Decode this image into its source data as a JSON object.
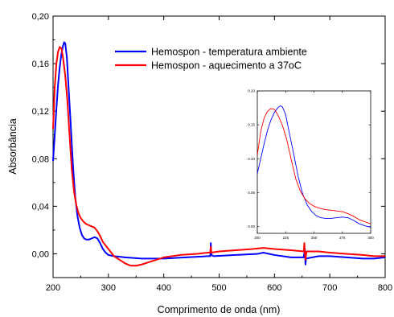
{
  "chart_data": [
    {
      "type": "line",
      "title": "",
      "xlabel": "Comprimento de onda (nm)",
      "ylabel": "Absorbância",
      "xlim": [
        200,
        800
      ],
      "ylim": [
        -0.02,
        0.2
      ],
      "x_ticks": [
        200,
        300,
        400,
        500,
        600,
        700,
        800
      ],
      "x_tick_labels": [
        "200",
        "300",
        "400",
        "500",
        "600",
        "700",
        "800"
      ],
      "y_ticks": [
        0.0,
        0.04,
        0.08,
        0.12,
        0.16,
        0.2
      ],
      "y_tick_labels": [
        "0,00",
        "0,04",
        "0,08",
        "0,12",
        "0,16",
        "0,20"
      ],
      "legend_position": "top-right",
      "series": [
        {
          "name": "Hemospon - temperatura ambiente",
          "color": "#0000ff",
          "points": [
            [
              200,
              0.078
            ],
            [
              203,
              0.1
            ],
            [
              206,
              0.122
            ],
            [
              209,
              0.142
            ],
            [
              212,
              0.157
            ],
            [
              215,
              0.168
            ],
            [
              218,
              0.175
            ],
            [
              220,
              0.178
            ],
            [
              222,
              0.177
            ],
            [
              225,
              0.165
            ],
            [
              228,
              0.14
            ],
            [
              232,
              0.108
            ],
            [
              236,
              0.074
            ],
            [
              240,
              0.048
            ],
            [
              244,
              0.032
            ],
            [
              248,
              0.022
            ],
            [
              252,
              0.016
            ],
            [
              256,
              0.013
            ],
            [
              260,
              0.012
            ],
            [
              265,
              0.012
            ],
            [
              270,
              0.013
            ],
            [
              275,
              0.014
            ],
            [
              280,
              0.013
            ],
            [
              285,
              0.009
            ],
            [
              290,
              0.004
            ],
            [
              295,
              0.001
            ],
            [
              300,
              -0.001
            ],
            [
              310,
              -0.002
            ],
            [
              330,
              -0.003
            ],
            [
              360,
              -0.004
            ],
            [
              400,
              -0.004
            ],
            [
              440,
              -0.003
            ],
            [
              480,
              -0.002
            ],
            [
              484,
              -0.002
            ],
            [
              485,
              0.009
            ],
            [
              486,
              -0.001
            ],
            [
              490,
              -0.002
            ],
            [
              530,
              -0.001
            ],
            [
              570,
              0.0
            ],
            [
              580,
              0.001
            ],
            [
              600,
              -0.001
            ],
            [
              630,
              -0.003
            ],
            [
              653,
              -0.003
            ],
            [
              655,
              0.004
            ],
            [
              656,
              -0.009
            ],
            [
              657,
              -0.004
            ],
            [
              680,
              -0.002
            ],
            [
              700,
              -0.002
            ],
            [
              730,
              -0.003
            ],
            [
              760,
              -0.004
            ],
            [
              780,
              -0.004
            ],
            [
              800,
              -0.003
            ]
          ]
        },
        {
          "name": "Hemospon - aquecimento a 37oC",
          "color": "#ff0000",
          "points": [
            [
              200,
              0.105
            ],
            [
              203,
              0.14
            ],
            [
              206,
              0.16
            ],
            [
              209,
              0.17
            ],
            [
              212,
              0.174
            ],
            [
              215,
              0.173
            ],
            [
              218,
              0.165
            ],
            [
              222,
              0.15
            ],
            [
              226,
              0.128
            ],
            [
              230,
              0.098
            ],
            [
              234,
              0.07
            ],
            [
              238,
              0.052
            ],
            [
              242,
              0.041
            ],
            [
              246,
              0.034
            ],
            [
              250,
              0.03
            ],
            [
              255,
              0.027
            ],
            [
              260,
              0.025
            ],
            [
              265,
              0.024
            ],
            [
              270,
              0.023
            ],
            [
              275,
              0.022
            ],
            [
              280,
              0.019
            ],
            [
              285,
              0.015
            ],
            [
              290,
              0.01
            ],
            [
              300,
              0.004
            ],
            [
              310,
              -0.002
            ],
            [
              320,
              -0.005
            ],
            [
              330,
              -0.008
            ],
            [
              340,
              -0.01
            ],
            [
              350,
              -0.01
            ],
            [
              360,
              -0.009
            ],
            [
              380,
              -0.006
            ],
            [
              400,
              -0.003
            ],
            [
              430,
              -0.001
            ],
            [
              460,
              0.0
            ],
            [
              480,
              0.001
            ],
            [
              484,
              0.001
            ],
            [
              485,
              0.006
            ],
            [
              486,
              0.001
            ],
            [
              500,
              0.002
            ],
            [
              530,
              0.003
            ],
            [
              560,
              0.004
            ],
            [
              580,
              0.005
            ],
            [
              600,
              0.004
            ],
            [
              630,
              0.003
            ],
            [
              653,
              0.002
            ],
            [
              654,
              0.009
            ],
            [
              655,
              0.001
            ],
            [
              656,
              -0.005
            ],
            [
              658,
              0.002
            ],
            [
              680,
              0.002
            ],
            [
              700,
              0.001
            ],
            [
              730,
              0.0
            ],
            [
              760,
              -0.001
            ],
            [
              780,
              -0.002
            ],
            [
              800,
              -0.002
            ]
          ]
        }
      ]
    },
    {
      "type": "line",
      "title": "",
      "xlabel": "",
      "ylabel": "",
      "xlim": [
        200,
        300
      ],
      "ylim": [
        -0.01,
        0.2
      ],
      "x_ticks": [
        200,
        225,
        250,
        275,
        300
      ],
      "x_tick_labels": [
        "200",
        "225",
        "250",
        "275",
        "300"
      ],
      "y_ticks": [
        0.0,
        0.05,
        0.1,
        0.15,
        0.2
      ],
      "y_tick_labels": [
        "0.00",
        "0.05",
        "0.10",
        "0.15",
        "0.20"
      ],
      "series": [
        {
          "color": "#0000ff",
          "points": [
            [
              200,
              0.078
            ],
            [
              203,
              0.1
            ],
            [
              206,
              0.122
            ],
            [
              209,
              0.142
            ],
            [
              212,
              0.157
            ],
            [
              215,
              0.168
            ],
            [
              218,
              0.175
            ],
            [
              220,
              0.178
            ],
            [
              222,
              0.177
            ],
            [
              225,
              0.165
            ],
            [
              228,
              0.14
            ],
            [
              232,
              0.108
            ],
            [
              236,
              0.074
            ],
            [
              240,
              0.048
            ],
            [
              244,
              0.032
            ],
            [
              248,
              0.022
            ],
            [
              252,
              0.016
            ],
            [
              256,
              0.013
            ],
            [
              260,
              0.012
            ],
            [
              265,
              0.012
            ],
            [
              270,
              0.013
            ],
            [
              275,
              0.014
            ],
            [
              280,
              0.013
            ],
            [
              285,
              0.009
            ],
            [
              290,
              0.004
            ],
            [
              295,
              0.001
            ],
            [
              300,
              -0.001
            ]
          ]
        },
        {
          "color": "#ff0000",
          "points": [
            [
              200,
              0.105
            ],
            [
              203,
              0.14
            ],
            [
              206,
              0.16
            ],
            [
              209,
              0.17
            ],
            [
              212,
              0.174
            ],
            [
              215,
              0.173
            ],
            [
              218,
              0.165
            ],
            [
              222,
              0.15
            ],
            [
              226,
              0.128
            ],
            [
              230,
              0.098
            ],
            [
              234,
              0.07
            ],
            [
              238,
              0.052
            ],
            [
              242,
              0.041
            ],
            [
              246,
              0.034
            ],
            [
              250,
              0.03
            ],
            [
              255,
              0.027
            ],
            [
              260,
              0.025
            ],
            [
              265,
              0.024
            ],
            [
              270,
              0.023
            ],
            [
              275,
              0.022
            ],
            [
              280,
              0.019
            ],
            [
              285,
              0.015
            ],
            [
              290,
              0.01
            ],
            [
              300,
              0.004
            ]
          ]
        }
      ]
    }
  ]
}
